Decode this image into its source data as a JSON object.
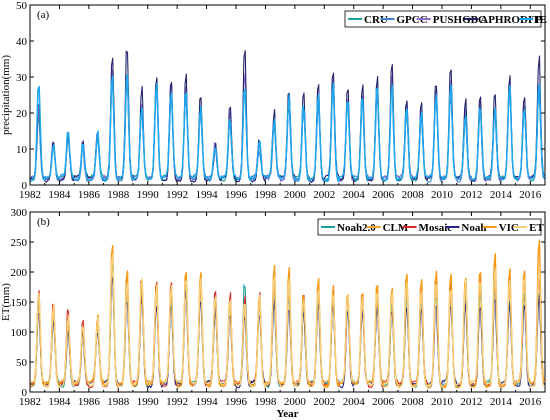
{
  "chart_data": [
    {
      "type": "line",
      "panel_label": "(a)",
      "ylabel": "precipitation(mm)",
      "xlabel": "",
      "xlim": [
        1982,
        2017
      ],
      "ylim": [
        0,
        50
      ],
      "x_ticks": [
        1982,
        1984,
        1986,
        1988,
        1990,
        1992,
        1994,
        1996,
        1998,
        2000,
        2002,
        2004,
        2006,
        2008,
        2010,
        2012,
        2014,
        2016
      ],
      "x_tick_labels": [
        "1982",
        "1984",
        "1986",
        "1988",
        "1990",
        "1992",
        "1994",
        "1996",
        "1998",
        "2000",
        "2002",
        "2004",
        "2006",
        "2008",
        "2010",
        "2012",
        "2014",
        "2016"
      ],
      "y_ticks": [
        0,
        10,
        20,
        30,
        40,
        50
      ],
      "y_tick_labels": [
        "0",
        "10",
        "20",
        "30",
        "40",
        "50"
      ],
      "legend_position": "top-right",
      "time_step": "monthly",
      "annual_peaks": [
        {
          "year": 1982,
          "values": [
            19,
            20,
            22,
            24,
            29
          ]
        },
        {
          "year": 1983,
          "values": [
            12,
            11,
            13,
            12,
            11
          ]
        },
        {
          "year": 1984,
          "values": [
            14,
            13,
            15,
            14,
            15
          ]
        },
        {
          "year": 1985,
          "values": [
            11,
            10,
            12,
            11,
            12
          ]
        },
        {
          "year": 1986,
          "values": [
            15,
            14,
            16,
            15,
            15
          ]
        },
        {
          "year": 1987,
          "values": [
            30,
            29,
            33,
            37,
            32
          ]
        },
        {
          "year": 1988,
          "values": [
            31,
            30,
            33,
            40,
            31
          ]
        },
        {
          "year": 1989,
          "values": [
            22,
            21,
            24,
            28,
            23
          ]
        },
        {
          "year": 1990,
          "values": [
            28,
            27,
            30,
            32,
            29
          ]
        },
        {
          "year": 1991,
          "values": [
            26,
            25,
            28,
            30,
            27
          ]
        },
        {
          "year": 1992,
          "values": [
            26,
            25,
            29,
            31,
            27
          ]
        },
        {
          "year": 1993,
          "values": [
            22,
            21,
            23,
            26,
            22
          ]
        },
        {
          "year": 1994,
          "values": [
            11,
            10,
            12,
            11,
            12
          ]
        },
        {
          "year": 1995,
          "values": [
            18,
            17,
            20,
            23,
            19
          ]
        },
        {
          "year": 1996,
          "values": [
            28,
            27,
            31,
            39,
            29
          ]
        },
        {
          "year": 1997,
          "values": [
            11,
            10,
            12,
            14,
            12
          ]
        },
        {
          "year": 1998,
          "values": [
            17,
            16,
            18,
            21,
            18
          ]
        },
        {
          "year": 1999,
          "values": [
            24,
            23,
            26,
            28,
            25
          ]
        },
        {
          "year": 2000,
          "values": [
            22,
            21,
            24,
            27,
            23
          ]
        },
        {
          "year": 2001,
          "values": [
            24,
            23,
            26,
            28,
            25
          ]
        },
        {
          "year": 2002,
          "values": [
            28,
            27,
            30,
            32,
            29
          ]
        },
        {
          "year": 2003,
          "values": [
            24,
            23,
            26,
            28,
            25
          ]
        },
        {
          "year": 2004,
          "values": [
            24,
            23,
            26,
            29,
            25
          ]
        },
        {
          "year": 2005,
          "values": [
            27,
            26,
            29,
            31,
            28
          ]
        },
        {
          "year": 2006,
          "values": [
            28,
            27,
            31,
            35,
            29
          ]
        },
        {
          "year": 2007,
          "values": [
            21,
            20,
            23,
            25,
            22
          ]
        },
        {
          "year": 2008,
          "values": [
            20,
            19,
            22,
            24,
            21
          ]
        },
        {
          "year": 2009,
          "values": [
            25,
            24,
            27,
            29,
            26
          ]
        },
        {
          "year": 2010,
          "values": [
            27,
            26,
            29,
            33,
            28
          ]
        },
        {
          "year": 2011,
          "values": [
            20,
            19,
            22,
            24,
            21
          ]
        },
        {
          "year": 2012,
          "values": [
            22,
            21,
            24,
            27,
            23
          ]
        },
        {
          "year": 2013,
          "values": [
            21,
            20,
            23,
            26,
            22
          ]
        },
        {
          "year": 2014,
          "values": [
            27,
            26,
            29,
            31,
            28
          ]
        },
        {
          "year": 2015,
          "values": [
            22,
            21,
            24,
            26,
            23
          ]
        },
        {
          "year": 2016,
          "values": [
            27,
            26,
            29,
            37,
            28
          ]
        }
      ],
      "series": [
        {
          "name": "CRU",
          "color": "#1aa39a",
          "width": 1.1
        },
        {
          "name": "GPCC",
          "color": "#3f7fc7",
          "width": 1.1
        },
        {
          "name": "PUSHGBC",
          "color": "#8a6fd0",
          "width": 1.1
        },
        {
          "name": "APHRODITE",
          "color": "#23236b",
          "width": 1.1
        },
        {
          "name": "P",
          "color": "#1ea8f0",
          "width": 1.5
        }
      ]
    },
    {
      "type": "line",
      "panel_label": "(b)",
      "ylabel": "ET(mm)",
      "xlabel": "Year",
      "xlim": [
        1982,
        2017
      ],
      "ylim": [
        0,
        300
      ],
      "x_ticks": [
        1982,
        1984,
        1986,
        1988,
        1990,
        1992,
        1994,
        1996,
        1998,
        2000,
        2002,
        2004,
        2006,
        2008,
        2010,
        2012,
        2014,
        2016
      ],
      "x_tick_labels": [
        "1982",
        "1984",
        "1986",
        "1988",
        "1990",
        "1992",
        "1994",
        "1996",
        "1998",
        "2000",
        "2002",
        "2004",
        "2006",
        "2008",
        "2010",
        "2012",
        "2014",
        "2016"
      ],
      "y_ticks": [
        0,
        50,
        100,
        150,
        200,
        250,
        300
      ],
      "y_tick_labels": [
        "0",
        "50",
        "100",
        "150",
        "200",
        "250",
        "300"
      ],
      "legend_position": "top-right",
      "time_step": "monthly",
      "annual_peaks": [
        {
          "year": 1982,
          "values": [
            150,
            160,
            175,
            140,
            165,
            175
          ]
        },
        {
          "year": 1983,
          "values": [
            130,
            135,
            160,
            120,
            145,
            150
          ]
        },
        {
          "year": 1984,
          "values": [
            110,
            115,
            145,
            105,
            125,
            130
          ]
        },
        {
          "year": 1985,
          "values": [
            100,
            105,
            120,
            95,
            115,
            112
          ]
        },
        {
          "year": 1986,
          "values": [
            115,
            120,
            130,
            110,
            130,
            125
          ]
        },
        {
          "year": 1987,
          "values": [
            220,
            230,
            240,
            200,
            258,
            240
          ]
        },
        {
          "year": 1988,
          "values": [
            170,
            180,
            200,
            160,
            205,
            190
          ]
        },
        {
          "year": 1989,
          "values": [
            180,
            190,
            200,
            165,
            190,
            190
          ]
        },
        {
          "year": 1990,
          "values": [
            170,
            180,
            190,
            155,
            185,
            180
          ]
        },
        {
          "year": 1991,
          "values": [
            165,
            175,
            185,
            150,
            185,
            180
          ]
        },
        {
          "year": 1992,
          "values": [
            185,
            195,
            205,
            170,
            210,
            200
          ]
        },
        {
          "year": 1993,
          "values": [
            175,
            185,
            200,
            160,
            205,
            195
          ]
        },
        {
          "year": 1994,
          "values": [
            150,
            160,
            175,
            140,
            170,
            165
          ]
        },
        {
          "year": 1995,
          "values": [
            145,
            150,
            165,
            135,
            160,
            155
          ]
        },
        {
          "year": 1996,
          "values": [
            190,
            150,
            160,
            130,
            155,
            160
          ]
        },
        {
          "year": 1997,
          "values": [
            150,
            160,
            170,
            140,
            165,
            162
          ]
        },
        {
          "year": 1998,
          "values": [
            170,
            180,
            195,
            155,
            215,
            195
          ]
        },
        {
          "year": 1999,
          "values": [
            165,
            175,
            190,
            150,
            210,
            190
          ]
        },
        {
          "year": 2000,
          "values": [
            150,
            160,
            175,
            140,
            170,
            165
          ]
        },
        {
          "year": 2001,
          "values": [
            160,
            170,
            185,
            145,
            190,
            180
          ]
        },
        {
          "year": 2002,
          "values": [
            155,
            165,
            180,
            145,
            180,
            172
          ]
        },
        {
          "year": 2003,
          "values": [
            150,
            160,
            175,
            140,
            175,
            168
          ]
        },
        {
          "year": 2004,
          "values": [
            150,
            160,
            170,
            140,
            172,
            165
          ]
        },
        {
          "year": 2005,
          "values": [
            155,
            165,
            180,
            145,
            185,
            175
          ]
        },
        {
          "year": 2006,
          "values": [
            150,
            160,
            175,
            140,
            180,
            170
          ]
        },
        {
          "year": 2007,
          "values": [
            165,
            175,
            190,
            150,
            205,
            190
          ]
        },
        {
          "year": 2008,
          "values": [
            160,
            170,
            185,
            145,
            195,
            182
          ]
        },
        {
          "year": 2009,
          "values": [
            165,
            175,
            190,
            150,
            210,
            190
          ]
        },
        {
          "year": 2010,
          "values": [
            160,
            170,
            185,
            145,
            200,
            185
          ]
        },
        {
          "year": 2011,
          "values": [
            165,
            175,
            195,
            150,
            205,
            190
          ]
        },
        {
          "year": 2012,
          "values": [
            170,
            180,
            200,
            155,
            215,
            198
          ]
        },
        {
          "year": 2013,
          "values": [
            175,
            185,
            205,
            160,
            240,
            210
          ]
        },
        {
          "year": 2014,
          "values": [
            165,
            175,
            195,
            150,
            210,
            192
          ]
        },
        {
          "year": 2015,
          "values": [
            170,
            180,
            200,
            155,
            218,
            198
          ]
        },
        {
          "year": 2016,
          "values": [
            180,
            190,
            205,
            165,
            258,
            215
          ]
        }
      ],
      "series": [
        {
          "name": "Noah2.0",
          "color": "#1aa39a",
          "width": 1.1
        },
        {
          "name": "CLM",
          "color": "#f0a030",
          "width": 1.1
        },
        {
          "name": "Mosaic",
          "color": "#d62a2a",
          "width": 1.1
        },
        {
          "name": "Noah",
          "color": "#262680",
          "width": 1.1
        },
        {
          "name": "VIC",
          "color": "#f59a1a",
          "width": 1.4
        },
        {
          "name": "ET",
          "color": "#f7d07a",
          "width": 1.3
        }
      ]
    }
  ]
}
